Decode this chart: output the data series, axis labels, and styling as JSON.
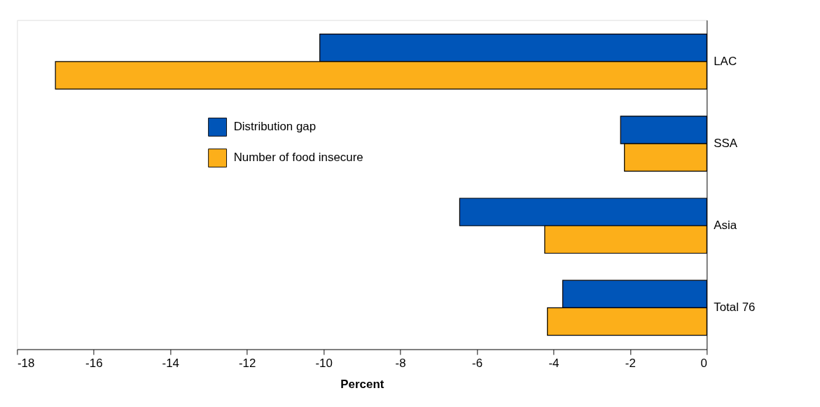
{
  "chart_data": {
    "type": "bar",
    "orientation": "horizontal",
    "xlabel": "Percent",
    "categories": [
      "LAC",
      "SSA",
      "Asia",
      "Total 76"
    ],
    "series": [
      {
        "name": "Distribution gap",
        "color": "#0055b8",
        "values": [
          -10.1,
          -2.25,
          -6.45,
          -3.76
        ]
      },
      {
        "name": "Number of food insecure",
        "color": "#fcaf1a",
        "values": [
          -17.0,
          -2.15,
          -4.23,
          -4.16
        ]
      }
    ],
    "xlim": [
      -18,
      0
    ],
    "xticks": [
      -18,
      -16,
      -14,
      -12,
      -10,
      -8,
      -6,
      -4,
      -2,
      0
    ],
    "grid": false,
    "legend": "top left"
  }
}
